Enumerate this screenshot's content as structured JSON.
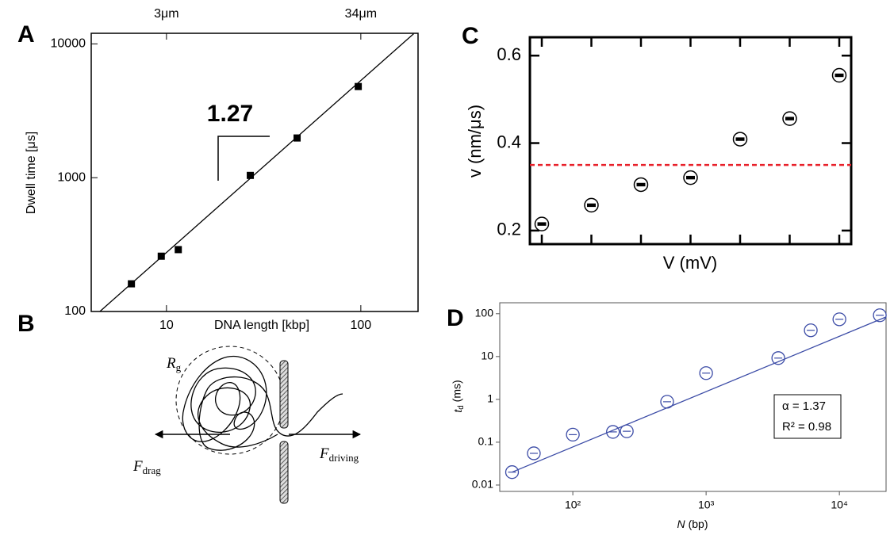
{
  "chart_data": [
    {
      "type": "scatter",
      "panel": "A",
      "x_label": "DNA length [kbp]",
      "y_label": "Dwell time [μs]",
      "xscale": "log",
      "yscale": "log",
      "x": [
        6.6,
        9.4,
        11.5,
        27,
        47,
        97
      ],
      "values": [
        161,
        259,
        290,
        1040,
        1980,
        4800
      ],
      "color": "#000000",
      "marker": "square",
      "fit": {
        "x": [
          4.54,
          187
        ],
        "values": [
          100,
          11900
        ]
      },
      "annotation": "1.27",
      "xlim": [
        4.1,
        197
      ],
      "ylim": [
        100,
        12000
      ],
      "xticks": [
        10,
        100
      ],
      "yticks": [
        100,
        1000,
        10000
      ],
      "x2ticks": [
        {
          "value": 10,
          "label": "3μm"
        },
        {
          "value": 100,
          "label": "34μm"
        }
      ]
    },
    {
      "type": "dot",
      "panel": "C",
      "x_label": "V (mV)",
      "y_label": "v (nm/μs)",
      "categories": [
        null,
        null,
        null,
        null,
        null,
        null,
        null
      ],
      "values": [
        0.215,
        0.258,
        0.305,
        0.321,
        0.409,
        0.456,
        0.555
      ],
      "color": "#000000",
      "ylim": [
        0.169,
        0.642
      ],
      "yticks": [
        0.2,
        0.4,
        0.6
      ],
      "ref_line": {
        "value": 0.35,
        "color": "#e8202a"
      }
    },
    {
      "type": "scatter",
      "panel": "D",
      "x_label": {
        "symbol": "N",
        "unit": "(bp)"
      },
      "y_label": {
        "symbol": "t",
        "subscript": "d",
        "unit": "(ms)"
      },
      "xscale": "log",
      "yscale": "log",
      "x": [
        35,
        51,
        100,
        200,
        254,
        510,
        1000,
        3480,
        6100,
        10000,
        20100
      ],
      "values": [
        0.02,
        0.055,
        0.15,
        0.174,
        0.18,
        0.88,
        4.1,
        9.2,
        41,
        74,
        92
      ],
      "color": "#3b4ba6",
      "marker": "circle",
      "fit": {
        "x": [
          35,
          22400
        ],
        "values": [
          0.02,
          84
        ]
      },
      "stats": [
        "α = 1.37",
        "R² = 0.98"
      ],
      "xlim": [
        28.3,
        22400
      ],
      "ylim": [
        0.0071,
        180
      ],
      "xticks": [
        {
          "value": 100,
          "label": "10²"
        },
        {
          "value": 1000,
          "label": "10³"
        },
        {
          "value": 10000,
          "label": "10⁴"
        }
      ],
      "yticks": [
        0.01,
        0.1,
        1,
        10,
        100
      ]
    }
  ],
  "diagram": {
    "panel": "B",
    "radius_label": {
      "symbol": "R",
      "subscript": "g"
    },
    "left_force": {
      "symbol": "F",
      "subscript": "drag"
    },
    "right_force": {
      "symbol": "F",
      "subscript": "driving"
    }
  }
}
